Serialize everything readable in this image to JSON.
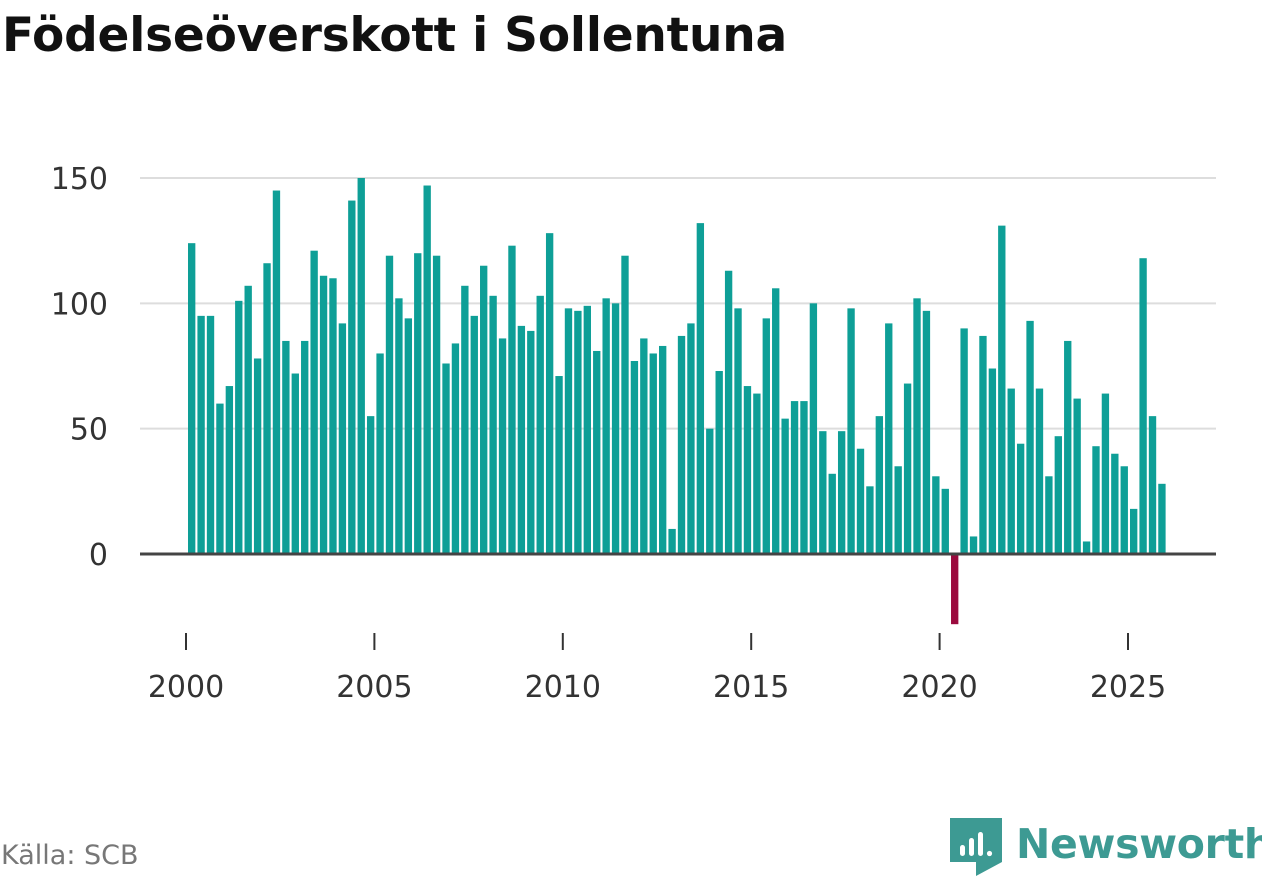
{
  "chart_data": {
    "type": "bar",
    "title": "Födelseöverskott i Sollentuna",
    "xlabel": "",
    "ylabel": "",
    "xlim": [
      1999.7,
      2027.3
    ],
    "ylim": [
      -28,
      150
    ],
    "y_ticks": [
      0,
      50,
      100,
      150
    ],
    "x_ticks": [
      2000,
      2005,
      2010,
      2015,
      2020,
      2025
    ],
    "grid": true,
    "legend": "none",
    "positive_color": "#0e9f97",
    "negative_color": "#9b0a3e",
    "series": [
      {
        "name": "Födelseöverskott",
        "start_year": 2000,
        "periods_per_year": 4,
        "values": [
          124,
          95,
          95,
          60,
          67,
          101,
          107,
          78,
          116,
          145,
          85,
          72,
          85,
          121,
          111,
          110,
          92,
          141,
          150,
          55,
          80,
          119,
          102,
          94,
          120,
          147,
          119,
          76,
          84,
          107,
          95,
          115,
          103,
          86,
          123,
          91,
          89,
          103,
          128,
          71,
          98,
          97,
          99,
          81,
          102,
          100,
          119,
          77,
          86,
          80,
          83,
          10,
          87,
          92,
          132,
          50,
          73,
          113,
          98,
          67,
          64,
          94,
          106,
          54,
          61,
          61,
          100,
          49,
          32,
          49,
          98,
          42,
          27,
          55,
          92,
          35,
          68,
          102,
          97,
          31,
          26,
          -28,
          90,
          7,
          87,
          74,
          131,
          66,
          44,
          93,
          66,
          31,
          47,
          85,
          62,
          5,
          43,
          64,
          40,
          35,
          18,
          118,
          55,
          28
        ]
      }
    ]
  },
  "source": "Källa: SCB",
  "brand": {
    "name": "Newsworthy",
    "color": "#3d9a93"
  }
}
